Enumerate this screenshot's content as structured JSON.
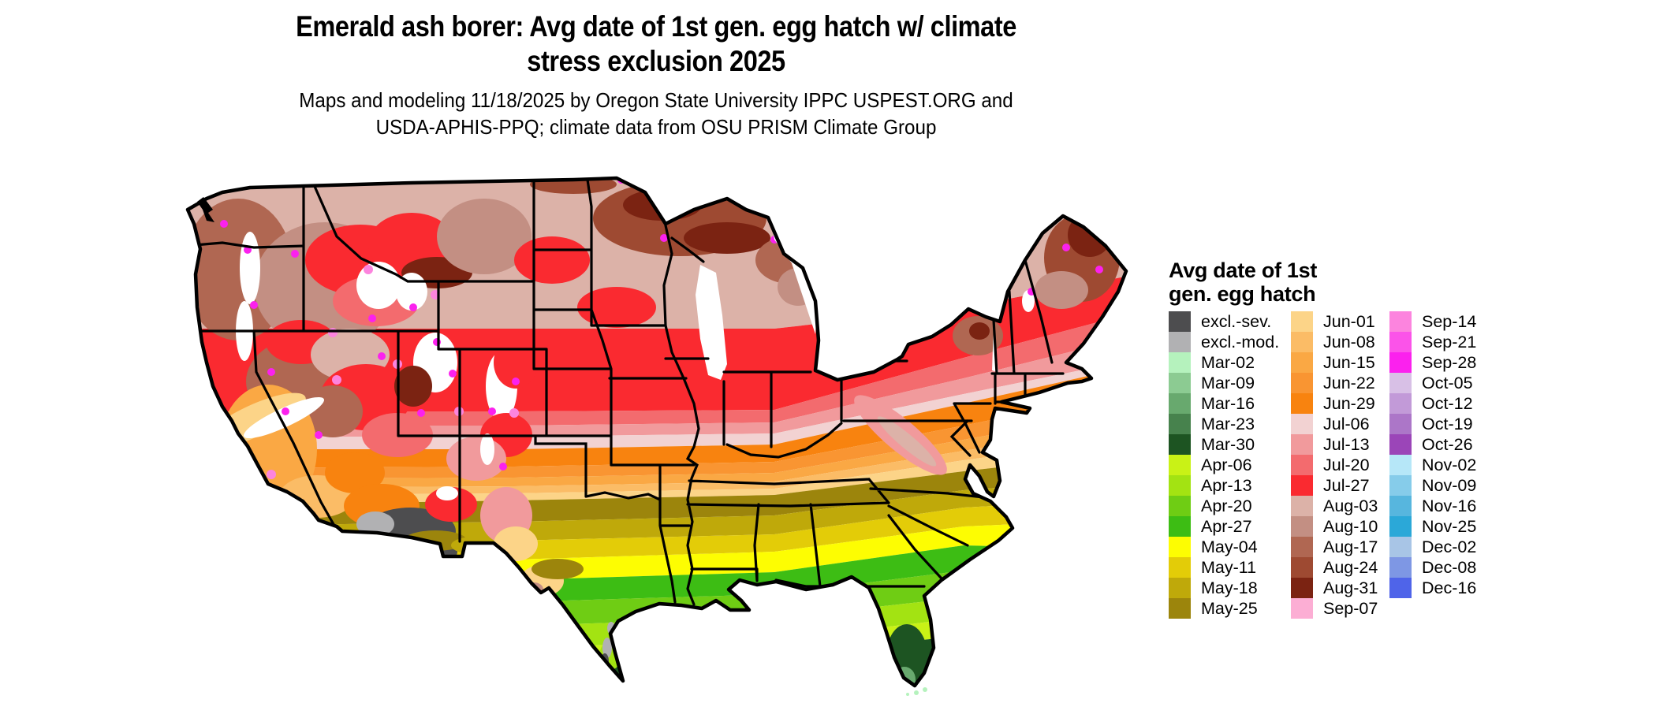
{
  "title": {
    "line1": "Emerald ash borer: Avg date of 1st gen. egg hatch w/ climate",
    "line2": "stress exclusion 2025"
  },
  "subtitle": {
    "line1": "Maps and modeling 11/18/2025 by Oregon State University IPPC USPEST.ORG and",
    "line2": "USDA-APHIS-PPQ; climate data from OSU PRISM Climate Group"
  },
  "legend": {
    "title_line1": "Avg date of 1st",
    "title_line2": "gen. egg hatch",
    "columns": [
      {
        "entries": [
          {
            "label": "excl.-sev.",
            "color": "#4d4d4f"
          },
          {
            "label": "excl.-mod.",
            "color": "#b1b1b3"
          },
          {
            "label": "Mar-02",
            "color": "#b5f2bd"
          },
          {
            "label": "Mar-09",
            "color": "#8ccb92"
          },
          {
            "label": "Mar-16",
            "color": "#68a96e"
          },
          {
            "label": "Mar-23",
            "color": "#47824d"
          },
          {
            "label": "Mar-30",
            "color": "#1d5422"
          },
          {
            "label": "Apr-06",
            "color": "#c9f216"
          },
          {
            "label": "Apr-13",
            "color": "#a3e312"
          },
          {
            "label": "Apr-20",
            "color": "#6fcd14"
          },
          {
            "label": "Apr-27",
            "color": "#3dbd14"
          },
          {
            "label": "May-04",
            "color": "#fdfd02"
          },
          {
            "label": "May-11",
            "color": "#e3cc08"
          },
          {
            "label": "May-18",
            "color": "#bfa90a"
          },
          {
            "label": "May-25",
            "color": "#9c850c"
          }
        ]
      },
      {
        "entries": [
          {
            "label": "Jun-01",
            "color": "#fcd488"
          },
          {
            "label": "Jun-08",
            "color": "#fbbc66"
          },
          {
            "label": "Jun-15",
            "color": "#faa844"
          },
          {
            "label": "Jun-22",
            "color": "#f99532"
          },
          {
            "label": "Jun-29",
            "color": "#f8830f"
          },
          {
            "label": "Jul-06",
            "color": "#f2d2d2"
          },
          {
            "label": "Jul-13",
            "color": "#f19a9c"
          },
          {
            "label": "Jul-20",
            "color": "#f36b6e"
          },
          {
            "label": "Jul-27",
            "color": "#fa2a30"
          },
          {
            "label": "Aug-03",
            "color": "#dcb2a8"
          },
          {
            "label": "Aug-10",
            "color": "#c38f83"
          },
          {
            "label": "Aug-17",
            "color": "#b06752"
          },
          {
            "label": "Aug-24",
            "color": "#9e4a32"
          },
          {
            "label": "Aug-31",
            "color": "#7b2312"
          },
          {
            "label": "Sep-07",
            "color": "#fcaed4"
          }
        ]
      },
      {
        "entries": [
          {
            "label": "Sep-14",
            "color": "#fc84de"
          },
          {
            "label": "Sep-21",
            "color": "#fb53e9"
          },
          {
            "label": "Sep-28",
            "color": "#fb21ee"
          },
          {
            "label": "Oct-05",
            "color": "#d8c0e6"
          },
          {
            "label": "Oct-12",
            "color": "#c29ad8"
          },
          {
            "label": "Oct-19",
            "color": "#ac76c8"
          },
          {
            "label": "Oct-26",
            "color": "#9b45b8"
          },
          {
            "label": "Nov-02",
            "color": "#b6e7f8"
          },
          {
            "label": "Nov-09",
            "color": "#86ccea"
          },
          {
            "label": "Nov-16",
            "color": "#57b6de"
          },
          {
            "label": "Nov-25",
            "color": "#2ba8d8"
          },
          {
            "label": "Dec-02",
            "color": "#a8c5e6"
          },
          {
            "label": "Dec-08",
            "color": "#7e97e4"
          },
          {
            "label": "Dec-16",
            "color": "#4f64e9"
          }
        ]
      }
    ]
  },
  "map": {
    "region": "Contiguous United States with state boundaries",
    "kind": "raster choropleth of average date of first-generation egg hatch",
    "bands_north_to_south": [
      "Aug-03",
      "Jul-27",
      "Jul-20",
      "Jul-13",
      "Jul-06",
      "Jun-29",
      "Jun-22",
      "Jun-15",
      "Jun-08",
      "Jun-01",
      "May-25",
      "May-18",
      "May-11",
      "May-04",
      "Apr-27",
      "Apr-20",
      "Apr-13",
      "Apr-06",
      "Mar-30"
    ],
    "notable_features": [
      "dark Aug browns over northern Minnesota, Wisconsin, Michigan UP, Adirondacks and interior Maine",
      "white no-data patches over high western mountains fringed with Sep magenta/pink pixels",
      "excl.-sev. dark gray over Arizona low deserts and along the lower Rio Grande",
      "Jun-01 peach over the California Central Valley",
      "Mar dark greens at the tips of south Florida and south Texas",
      "pale-mint Mar-02 specks at the Florida Keys"
    ]
  }
}
